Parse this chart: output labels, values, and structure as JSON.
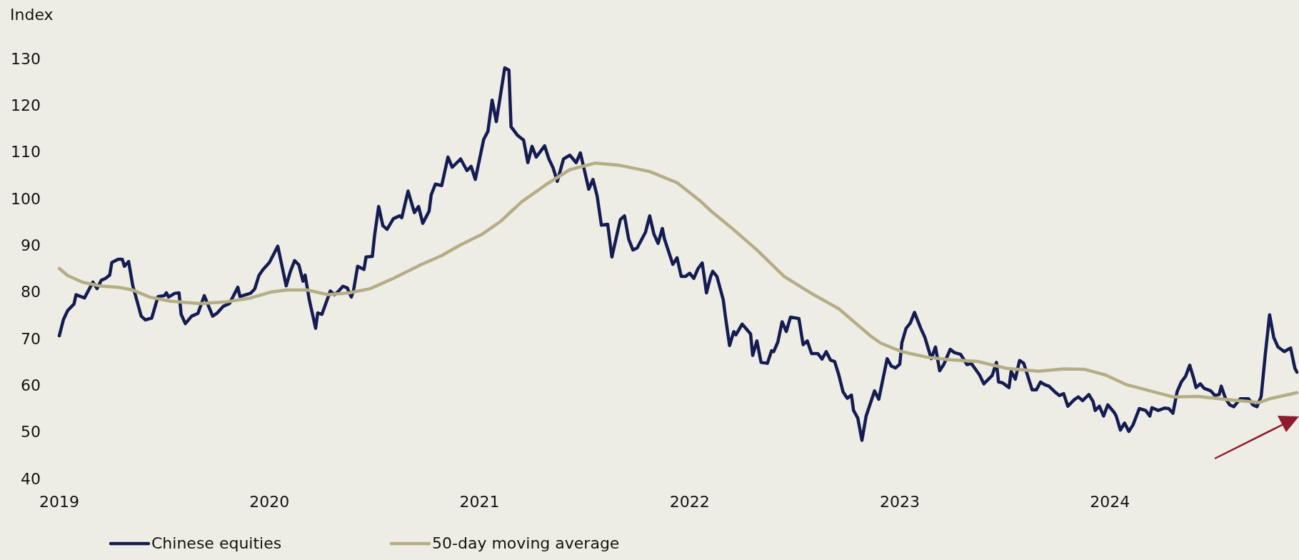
{
  "chart_data": {
    "type": "line",
    "ylabel": "Index",
    "xlim": [
      2019,
      2024.9
    ],
    "xticks": [
      2019,
      2020,
      2021,
      2022,
      2023,
      2024
    ],
    "ylim": [
      40,
      130
    ],
    "yticks": [
      40,
      50,
      60,
      70,
      80,
      90,
      100,
      110,
      120,
      130
    ],
    "legend": "bottom",
    "grid": false,
    "marker": "none",
    "line_style": "solid",
    "series": [
      {
        "name": "Chinese equities",
        "color": "#141c52",
        "x": [
          2019.0,
          2019.02,
          2019.04,
          2019.07,
          2019.08,
          2019.12,
          2019.16,
          2019.18,
          2019.2,
          2019.22,
          2019.24,
          2019.25,
          2019.28,
          2019.3,
          2019.31,
          2019.33,
          2019.35,
          2019.39,
          2019.41,
          2019.44,
          2019.47,
          2019.5,
          2019.51,
          2019.52,
          2019.55,
          2019.57,
          2019.58,
          2019.6,
          2019.63,
          2019.66,
          2019.69,
          2019.73,
          2019.75,
          2019.78,
          2019.81,
          2019.85,
          2019.86,
          2019.91,
          2019.93,
          2019.95,
          2019.97,
          2020.0,
          2020.04,
          2020.08,
          2020.1,
          2020.12,
          2020.14,
          2020.16,
          2020.17,
          2020.19,
          2020.22,
          2020.23,
          2020.25,
          2020.29,
          2020.31,
          2020.33,
          2020.35,
          2020.37,
          2020.39,
          2020.4,
          2020.42,
          2020.45,
          2020.46,
          2020.49,
          2020.5,
          2020.52,
          2020.54,
          2020.56,
          2020.59,
          2020.62,
          2020.63,
          2020.66,
          2020.69,
          2020.71,
          2020.73,
          2020.76,
          2020.77,
          2020.79,
          2020.82,
          2020.85,
          2020.87,
          2020.91,
          2020.94,
          2020.96,
          2020.98,
          2021.02,
          2021.04,
          2021.06,
          2021.08,
          2021.12,
          2021.14,
          2021.15,
          2021.18,
          2021.21,
          2021.23,
          2021.25,
          2021.27,
          2021.31,
          2021.33,
          2021.35,
          2021.37,
          2021.4,
          2021.43,
          2021.46,
          2021.48,
          2021.52,
          2021.54,
          2021.56,
          2021.58,
          2021.61,
          2021.63,
          2021.67,
          2021.69,
          2021.71,
          2021.73,
          2021.75,
          2021.79,
          2021.81,
          2021.83,
          2021.85,
          2021.87,
          2021.88,
          2021.92,
          2021.94,
          2021.96,
          2021.98,
          2022.0,
          2022.02,
          2022.04,
          2022.06,
          2022.08,
          2022.1,
          2022.11,
          2022.13,
          2022.16,
          2022.17,
          2022.19,
          2022.21,
          2022.22,
          2022.25,
          2022.29,
          2022.3,
          2022.32,
          2022.34,
          2022.37,
          2022.39,
          2022.4,
          2022.42,
          2022.44,
          2022.46,
          2022.48,
          2022.52,
          2022.54,
          2022.56,
          2022.58,
          2022.61,
          2022.63,
          2022.65,
          2022.67,
          2022.69,
          2022.71,
          2022.73,
          2022.75,
          2022.77,
          2022.78,
          2022.8,
          2022.82,
          2022.84,
          2022.86,
          2022.88,
          2022.9,
          2022.94,
          2022.96,
          2022.98,
          2023.0,
          2023.01,
          2023.03,
          2023.05,
          2023.07,
          2023.1,
          2023.12,
          2023.13,
          2023.15,
          2023.17,
          2023.19,
          2023.21,
          2023.24,
          2023.26,
          2023.29,
          2023.32,
          2023.34,
          2023.38,
          2023.4,
          2023.44,
          2023.46,
          2023.47,
          2023.49,
          2023.52,
          2023.53,
          2023.55,
          2023.57,
          2023.59,
          2023.63,
          2023.65,
          2023.67,
          2023.69,
          2023.71,
          2023.74,
          2023.76,
          2023.78,
          2023.8,
          2023.83,
          2023.85,
          2023.87,
          2023.9,
          2023.92,
          2023.93,
          2023.95,
          2023.97,
          2023.99,
          2024.02,
          2024.03,
          2024.05,
          2024.07,
          2024.09,
          2024.11,
          2024.14,
          2024.17,
          2024.19,
          2024.2,
          2024.23,
          2024.26,
          2024.28,
          2024.3,
          2024.32,
          2024.34,
          2024.36,
          2024.38,
          2024.4,
          2024.41,
          2024.43,
          2024.45,
          2024.48,
          2024.5,
          2024.52,
          2024.53,
          2024.55,
          2024.57,
          2024.59,
          2024.62,
          2024.66,
          2024.68,
          2024.7,
          2024.72,
          2024.74,
          2024.76,
          2024.78,
          2024.8,
          2024.83,
          2024.86,
          2024.88,
          2024.89
        ],
        "values": [
          70.6,
          74.1,
          76,
          77.4,
          79.4,
          78.7,
          82.1,
          80.7,
          82.5,
          82.9,
          83.6,
          86.3,
          87,
          87,
          85.5,
          86.5,
          81.3,
          74.8,
          74,
          74.4,
          79,
          79.2,
          79.8,
          78.9,
          79.7,
          79.8,
          75.2,
          73.2,
          74.8,
          75.4,
          79.2,
          74.8,
          75.4,
          76.9,
          77.5,
          81,
          79,
          79.7,
          80.6,
          83.5,
          84.8,
          86.3,
          89.8,
          81.3,
          84.4,
          86.7,
          85.8,
          82.3,
          83.6,
          78.3,
          72.2,
          75.5,
          75.2,
          80.2,
          79.4,
          80.2,
          81.2,
          80.9,
          78.9,
          80.2,
          85.5,
          84.8,
          87.5,
          87.6,
          91.9,
          98.3,
          94.2,
          93.4,
          95.7,
          96.3,
          95.9,
          101.6,
          97,
          98.3,
          94.7,
          97.3,
          100.8,
          103.1,
          102.8,
          108.9,
          106.7,
          108.5,
          106,
          106.9,
          104.1,
          112.7,
          114.4,
          121.1,
          116.5,
          128,
          127.5,
          115.4,
          113.6,
          112.5,
          107.7,
          111.2,
          108.9,
          111.3,
          108.5,
          106.6,
          103.7,
          108.5,
          109.3,
          107.7,
          109.8,
          102,
          104.1,
          100.5,
          94.3,
          94.5,
          87.5,
          95.5,
          96.3,
          91.3,
          89,
          89.4,
          92.8,
          96.3,
          92.4,
          90.4,
          93.6,
          91.4,
          85.9,
          87.3,
          83.3,
          83.3,
          84,
          82.9,
          85,
          86.2,
          79.8,
          83.3,
          84.4,
          83.3,
          78.3,
          74.8,
          68.5,
          71.5,
          70.8,
          73.1,
          71,
          66.4,
          69.5,
          64.9,
          64.7,
          67.4,
          67.2,
          69.3,
          73.6,
          71.5,
          74.6,
          74.3,
          68.7,
          69.5,
          66.8,
          66.8,
          65.6,
          67.2,
          65.4,
          65.1,
          62.2,
          58.6,
          57.2,
          57.9,
          54.6,
          53,
          48.2,
          53.4,
          56.1,
          58.8,
          57,
          65.7,
          64.1,
          63.7,
          64.5,
          69.1,
          72.2,
          73.3,
          75.6,
          72.2,
          70.2,
          68.7,
          65.7,
          68.2,
          63.1,
          64.5,
          67.7,
          67,
          66.6,
          64.4,
          64.7,
          62.2,
          60.3,
          62.1,
          64.9,
          60.7,
          60.5,
          59.5,
          63,
          61.3,
          65.3,
          64.7,
          59,
          59,
          60.7,
          60.1,
          59.8,
          58.5,
          57.8,
          58.2,
          55.5,
          56.9,
          57.5,
          56.7,
          58,
          56.5,
          54.6,
          55.5,
          53.4,
          55.8,
          54.2,
          53.4,
          50.4,
          51.9,
          50.1,
          51.5,
          55,
          54.6,
          53.4,
          55.2,
          54.6,
          55.1,
          55,
          54,
          58.6,
          60.7,
          61.9,
          64.3,
          61.3,
          59.5,
          60.3,
          59.3,
          58.8,
          57.8,
          58,
          59.8,
          57.2,
          55.8,
          55.4,
          57.1,
          57.1,
          55.8,
          55.4,
          57.6,
          66.8,
          75.1,
          70.2,
          68.2,
          67.2,
          68,
          63.7,
          62.8
        ]
      },
      {
        "name": "50-day moving average",
        "color": "#b5ad85",
        "x": [
          2019.0,
          2019.04,
          2019.11,
          2019.19,
          2019.28,
          2019.35,
          2019.43,
          2019.53,
          2019.67,
          2019.8,
          2019.91,
          2020.01,
          2020.08,
          2020.18,
          2020.28,
          2020.38,
          2020.48,
          2020.59,
          2020.72,
          2020.82,
          2020.91,
          2021.01,
          2021.1,
          2021.2,
          2021.32,
          2021.43,
          2021.55,
          2021.67,
          2021.81,
          2021.94,
          2022.05,
          2022.1,
          2022.2,
          2022.32,
          2022.45,
          2022.59,
          2022.71,
          2022.79,
          2022.86,
          2022.91,
          2023.01,
          2023.13,
          2023.23,
          2023.37,
          2023.51,
          2023.66,
          2023.78,
          2023.88,
          2023.98,
          2024.08,
          2024.19,
          2024.3,
          2024.42,
          2024.56,
          2024.71,
          2024.76,
          2024.83,
          2024.89
        ],
        "values": [
          85,
          83.5,
          82.1,
          81.3,
          81,
          80.4,
          78.9,
          78,
          77.5,
          77.9,
          78.7,
          80,
          80.4,
          80.4,
          79.4,
          79.8,
          80.7,
          82.9,
          85.8,
          87.8,
          90.1,
          92.3,
          95.1,
          99.3,
          103.1,
          106.2,
          107.6,
          107.1,
          105.8,
          103.4,
          99.5,
          97.4,
          93.7,
          89,
          83.3,
          79.4,
          76.4,
          73.3,
          70.6,
          69,
          67.2,
          66,
          65.5,
          65.1,
          63.6,
          63,
          63.5,
          63.4,
          62.2,
          60.1,
          58.8,
          57.5,
          57.6,
          56.9,
          56.3,
          57.1,
          57.8,
          58.4
        ]
      }
    ]
  }
}
